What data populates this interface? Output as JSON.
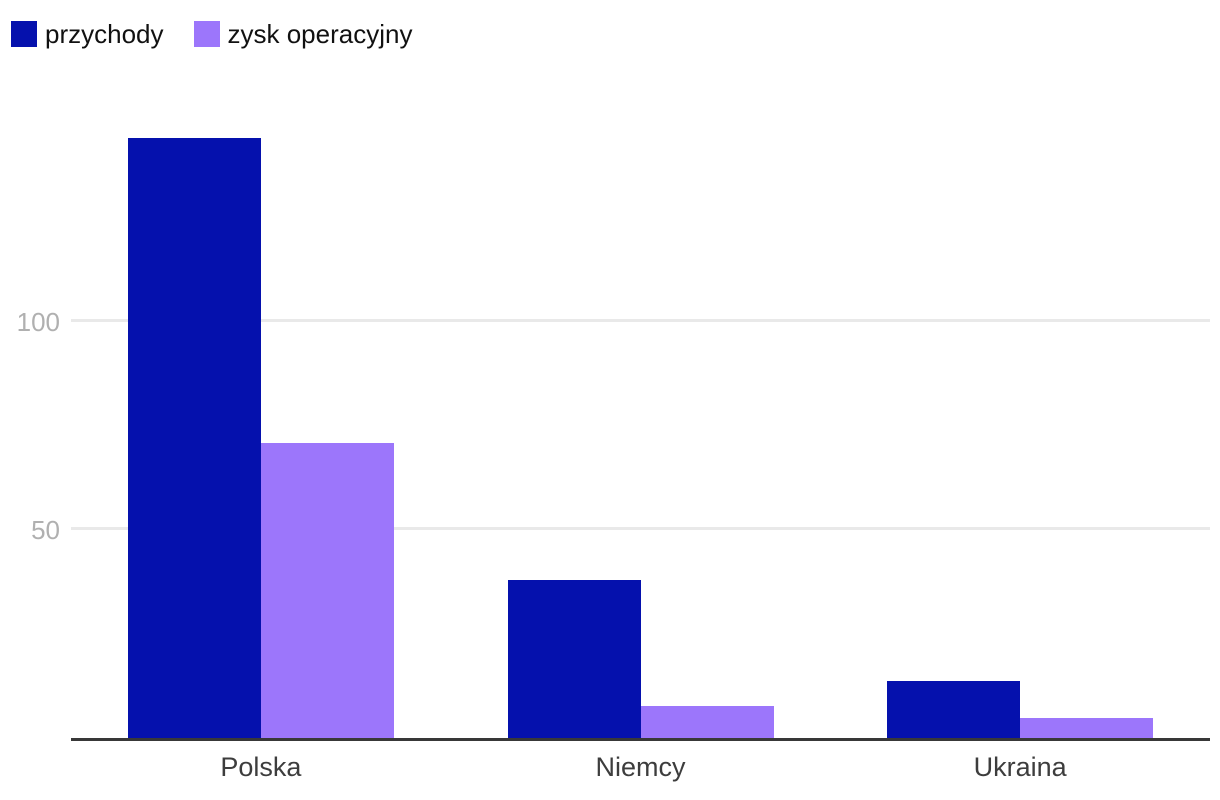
{
  "chart_data": {
    "type": "bar",
    "title": "",
    "xlabel": "",
    "ylabel": "",
    "categories": [
      "Polska",
      "Niemcy",
      "Ukraina"
    ],
    "series": [
      {
        "name": "przychody",
        "color": "#0511ad",
        "values": [
          144,
          38,
          14
        ]
      },
      {
        "name": "zysk operacyjny",
        "color": "#9c76fb",
        "values": [
          71,
          8,
          5
        ]
      }
    ],
    "yticks": [
      50,
      100
    ],
    "ylim": [
      0,
      160
    ],
    "grid": true,
    "legend_position": "top-left"
  },
  "colors": {
    "series_przychody": "#0511ad",
    "series_zysk_operacyjny": "#9c76fb",
    "gridline": "#e9e9e9",
    "axis_line": "#383838",
    "tick_label": "#b0b0b0",
    "category_label": "#3d3d3d",
    "legend_text": "#111111",
    "background": "#ffffff"
  }
}
